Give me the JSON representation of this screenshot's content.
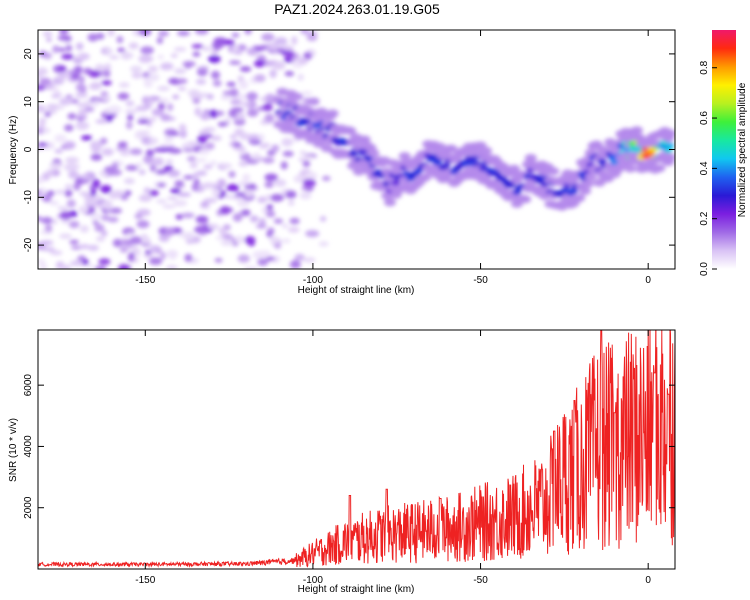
{
  "title": "PAZ1.2024.263.01.19.G05",
  "chart_data": [
    {
      "type": "heatmap",
      "xlabel": "Height of straight line (km)",
      "ylabel": "Frequency (Hz)",
      "xlim": [
        -182,
        8
      ],
      "ylim": [
        -25,
        25
      ],
      "x_ticks": [
        -150,
        -100,
        -50,
        0
      ],
      "y_ticks": [
        -20,
        -10,
        0,
        10,
        20
      ],
      "colorbar": {
        "label": "Normalized spectral amplitude",
        "range": [
          0,
          0.95
        ],
        "ticks": [
          0.0,
          0.2,
          0.4,
          0.6,
          0.8
        ],
        "colors": [
          "#ffffff",
          "#d9c2f5",
          "#a06ae6",
          "#7b1ee0",
          "#2a1ad6",
          "#1f62f0",
          "#10c8f0",
          "#18e8a0",
          "#3ef03a",
          "#b8f020",
          "#fff000",
          "#ff9a00",
          "#ff2a10",
          "#f0186a"
        ]
      },
      "ridge": [
        {
          "x": -110,
          "y": 8,
          "a": 0.32
        },
        {
          "x": -103,
          "y": 7,
          "a": 0.32
        },
        {
          "x": -95,
          "y": 4,
          "a": 0.3
        },
        {
          "x": -88,
          "y": 0,
          "a": 0.3
        },
        {
          "x": -82,
          "y": -3,
          "a": 0.3
        },
        {
          "x": -77,
          "y": -7,
          "a": 0.28
        },
        {
          "x": -70,
          "y": -4,
          "a": 0.3
        },
        {
          "x": -63,
          "y": -2,
          "a": 0.3
        },
        {
          "x": -57,
          "y": -4,
          "a": 0.3
        },
        {
          "x": -50,
          "y": -3,
          "a": 0.3
        },
        {
          "x": -45,
          "y": -5,
          "a": 0.3
        },
        {
          "x": -40,
          "y": -8,
          "a": 0.3
        },
        {
          "x": -35,
          "y": -6,
          "a": 0.3
        },
        {
          "x": -30,
          "y": -7,
          "a": 0.28
        },
        {
          "x": -24,
          "y": -9,
          "a": 0.3
        },
        {
          "x": -18,
          "y": -4,
          "a": 0.3
        },
        {
          "x": -12,
          "y": -2,
          "a": 0.32
        },
        {
          "x": -8,
          "y": 0,
          "a": 0.4
        },
        {
          "x": -4,
          "y": 0,
          "a": 0.55
        },
        {
          "x": 0,
          "y": 0,
          "a": 0.95
        },
        {
          "x": 4,
          "y": 0,
          "a": 0.45
        },
        {
          "x": 7,
          "y": 0,
          "a": 0.4
        }
      ]
    },
    {
      "type": "line",
      "xlabel": "Height of straight line (km)",
      "ylabel": "SNR (10 * v/v)",
      "xlim": [
        -182,
        8
      ],
      "ylim": [
        0,
        7800
      ],
      "x_ticks": [
        -150,
        -100,
        -50,
        0
      ],
      "y_ticks": [
        2000,
        4000,
        6000
      ],
      "line_color": "#ee2222",
      "envelope": [
        {
          "x": -182,
          "snr": 150
        },
        {
          "x": -150,
          "snr": 150
        },
        {
          "x": -120,
          "snr": 170
        },
        {
          "x": -105,
          "snr": 280
        },
        {
          "x": -100,
          "snr": 500
        },
        {
          "x": -90,
          "snr": 900
        },
        {
          "x": -80,
          "snr": 1100
        },
        {
          "x": -70,
          "snr": 1200
        },
        {
          "x": -60,
          "snr": 1300
        },
        {
          "x": -50,
          "snr": 1500
        },
        {
          "x": -40,
          "snr": 1700
        },
        {
          "x": -30,
          "snr": 2200
        },
        {
          "x": -25,
          "snr": 3000
        },
        {
          "x": -20,
          "snr": 3300
        },
        {
          "x": -15,
          "snr": 4000
        },
        {
          "x": -10,
          "snr": 4000
        },
        {
          "x": -5,
          "snr": 4300
        },
        {
          "x": 0,
          "snr": 4400
        },
        {
          "x": 8,
          "snr": 5000
        }
      ],
      "spikes": [
        {
          "x": -89,
          "snr": 2400
        },
        {
          "x": -78,
          "snr": 2600
        },
        {
          "x": -62,
          "snr": 2300
        },
        {
          "x": -28,
          "snr": 4500
        },
        {
          "x": -22,
          "snr": 5500
        },
        {
          "x": -14,
          "snr": 7800
        },
        {
          "x": -10,
          "snr": 5100
        },
        {
          "x": 2,
          "snr": 6400
        },
        {
          "x": 6,
          "snr": 5700
        }
      ]
    }
  ]
}
